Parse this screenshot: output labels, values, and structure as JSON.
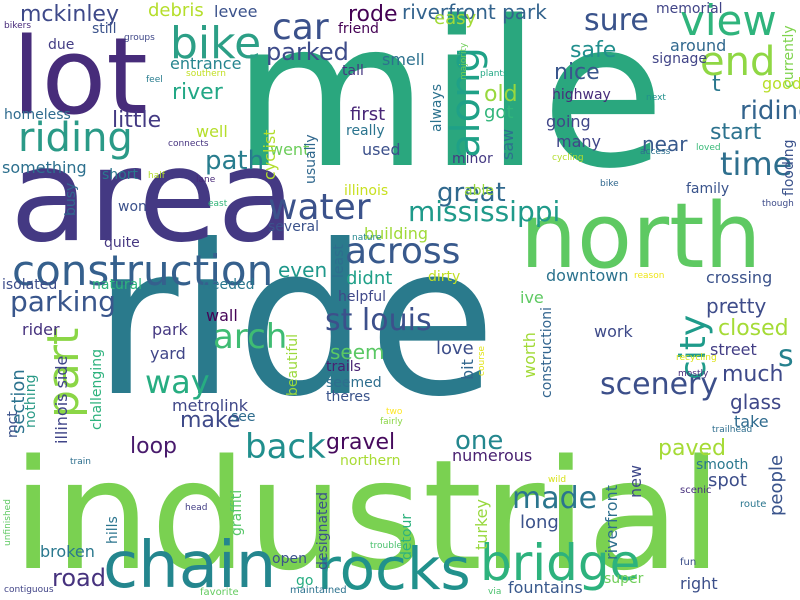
{
  "words": [
    {
      "text": "ride",
      "color": "#2a7a8c"
    },
    {
      "text": "industrial",
      "color": "#7ad151"
    },
    {
      "text": "mile",
      "color": "#2aa77e"
    },
    {
      "text": "area",
      "color": "#443983"
    },
    {
      "text": "lot",
      "color": "#472c7a"
    },
    {
      "text": "north",
      "color": "#5ec962"
    },
    {
      "text": "chain",
      "color": "#24868e"
    },
    {
      "text": "rocks",
      "color": "#21918c"
    },
    {
      "text": "bridge",
      "color": "#2db27d"
    },
    {
      "text": "construction",
      "color": "#35608d"
    },
    {
      "text": "riding",
      "color": "#2a9a87"
    },
    {
      "text": "bike",
      "color": "#2c9f86"
    },
    {
      "text": "view",
      "color": "#2fb47c"
    },
    {
      "text": "along",
      "color": "#1fa187"
    },
    {
      "text": "end",
      "color": "#8fd744"
    },
    {
      "text": "sure",
      "color": "#3a538b"
    },
    {
      "text": "car",
      "color": "#3b518b"
    },
    {
      "text": "across",
      "color": "#38598c"
    },
    {
      "text": "water",
      "color": "#1f9a8a"
    },
    {
      "text": "mississippi",
      "color": "#30698e"
    },
    {
      "text": "great",
      "color": "#8bd646"
    },
    {
      "text": "part",
      "color": "#39568c"
    },
    {
      "text": "parking",
      "color": "#27ad81"
    },
    {
      "text": "way",
      "color": "#3fbc73"
    },
    {
      "text": "arch",
      "color": "#218f8d"
    },
    {
      "text": "back",
      "color": "#3c508b"
    },
    {
      "text": "st louis",
      "color": "#1e9b8a"
    },
    {
      "text": "city",
      "color": "#2e6f8e"
    },
    {
      "text": "time",
      "color": "#3c4f8a"
    },
    {
      "text": "scenery",
      "color": "#24878e"
    },
    {
      "text": "one",
      "color": "#2b758e"
    },
    {
      "text": "made",
      "color": "#46327e"
    },
    {
      "text": "road",
      "color": "#33638d"
    },
    {
      "text": "riding",
      "color": "#25ab82"
    },
    {
      "text": "s",
      "color": "#26818e"
    },
    {
      "text": "mckinley",
      "color": "#3e4989"
    },
    {
      "text": "debris",
      "color": "#b5de2b"
    },
    {
      "text": "levee",
      "color": "#3b528b"
    },
    {
      "text": "rode",
      "color": "#440154"
    },
    {
      "text": "riverfront park",
      "color": "#33638d"
    },
    {
      "text": "easy",
      "color": "#a2da37"
    },
    {
      "text": "memorial",
      "color": "#414487"
    },
    {
      "text": "parked",
      "color": "#3e4c8a"
    },
    {
      "text": "safe",
      "color": "#218f8d"
    },
    {
      "text": "around",
      "color": "#31688e"
    },
    {
      "text": "signage",
      "color": "#414487"
    },
    {
      "text": "entrance",
      "color": "#25848e"
    },
    {
      "text": "smell",
      "color": "#2d718e"
    },
    {
      "text": "nice",
      "color": "#39568c"
    },
    {
      "text": "river",
      "color": "#22a785"
    },
    {
      "text": "old",
      "color": "#98d83e"
    },
    {
      "text": "t",
      "color": "#2a788e"
    },
    {
      "text": "good",
      "color": "#b8de29"
    },
    {
      "text": "little",
      "color": "#443a83"
    },
    {
      "text": "first",
      "color": "#482677"
    },
    {
      "text": "got",
      "color": "#31b57b"
    },
    {
      "text": "highway",
      "color": "#472d7b"
    },
    {
      "text": "start",
      "color": "#2c728e"
    },
    {
      "text": "going",
      "color": "#404688"
    },
    {
      "text": "path",
      "color": "#287d8e"
    },
    {
      "text": "well",
      "color": "#b5de2b"
    },
    {
      "text": "really",
      "color": "#2b748e"
    },
    {
      "text": "used",
      "color": "#3c508b"
    },
    {
      "text": "many",
      "color": "#404588"
    },
    {
      "text": "near",
      "color": "#38598c"
    },
    {
      "text": "minor",
      "color": "#443983"
    },
    {
      "text": "something",
      "color": "#2d708e"
    },
    {
      "text": "short",
      "color": "#2a788e"
    },
    {
      "text": "went",
      "color": "#6ccd5a"
    },
    {
      "text": "cyclist",
      "color": "#b2dd2d"
    },
    {
      "text": "usually",
      "color": "#31688e"
    },
    {
      "text": "saw",
      "color": "#2d718e"
    },
    {
      "text": "illinois",
      "color": "#c8e020"
    },
    {
      "text": "able",
      "color": "#9bd93c"
    },
    {
      "text": "family",
      "color": "#3a548c"
    },
    {
      "text": "won",
      "color": "#3b518b"
    },
    {
      "text": "busy",
      "color": "#31688e"
    },
    {
      "text": "several",
      "color": "#3b528b"
    },
    {
      "text": "building",
      "color": "#a0da39"
    },
    {
      "text": "even",
      "color": "#1f988b"
    },
    {
      "text": "didnt",
      "color": "#1fa088"
    },
    {
      "text": "downtown",
      "color": "#2c738e"
    },
    {
      "text": "crossing",
      "color": "#3b528b"
    },
    {
      "text": "quite",
      "color": "#453781"
    },
    {
      "text": "isolated",
      "color": "#3d4d8a"
    },
    {
      "text": "natural",
      "color": "#2fb47c"
    },
    {
      "text": "needed",
      "color": "#2a778e"
    },
    {
      "text": "wall",
      "color": "#450457"
    },
    {
      "text": "helpful",
      "color": "#3f4889"
    },
    {
      "text": "pretty",
      "color": "#3e4c8a"
    },
    {
      "text": "closed",
      "color": "#a5db36"
    },
    {
      "text": "rider",
      "color": "#46327e"
    },
    {
      "text": "park",
      "color": "#453882"
    },
    {
      "text": "yard",
      "color": "#404688"
    },
    {
      "text": "seem",
      "color": "#5ac864"
    },
    {
      "text": "love",
      "color": "#3d4e8a"
    },
    {
      "text": "work",
      "color": "#3e4a89"
    },
    {
      "text": "street",
      "color": "#433e85"
    },
    {
      "text": "much",
      "color": "#3e4989"
    },
    {
      "text": "metrolink",
      "color": "#3f4788"
    },
    {
      "text": "trails",
      "color": "#482173"
    },
    {
      "text": "seemed",
      "color": "#2e6e8e"
    },
    {
      "text": "theres",
      "color": "#3a538b"
    },
    {
      "text": "glass",
      "color": "#3f4889"
    },
    {
      "text": "make",
      "color": "#3e4989"
    },
    {
      "text": "see",
      "color": "#2f6c8e"
    },
    {
      "text": "take",
      "color": "#2f6b8e"
    },
    {
      "text": "loop",
      "color": "#481a6c"
    },
    {
      "text": "gravel",
      "color": "#460a5d"
    },
    {
      "text": "paved",
      "color": "#a5db36"
    },
    {
      "text": "smooth",
      "color": "#2a788e"
    },
    {
      "text": "spot",
      "color": "#3d4e8a"
    },
    {
      "text": "numerous",
      "color": "#481f70"
    },
    {
      "text": "northern",
      "color": "#a8db34"
    },
    {
      "text": "long",
      "color": "#3b528b"
    },
    {
      "text": "fountains",
      "color": "#38588c"
    },
    {
      "text": "right",
      "color": "#3c4f8a"
    },
    {
      "text": "broken",
      "color": "#2a788e"
    },
    {
      "text": "open",
      "color": "#3b528b"
    },
    {
      "text": "go",
      "color": "#26ad81"
    },
    {
      "text": "super",
      "color": "#6ece58"
    },
    {
      "text": "maintained",
      "color": "#2c728e"
    },
    {
      "text": "favorite",
      "color": "#63cb5f"
    },
    {
      "text": "trouble",
      "color": "#4ac16d"
    },
    {
      "text": "via",
      "color": "#4ac16d"
    },
    {
      "text": "fun",
      "color": "#3c4f8a"
    },
    {
      "text": "scenic",
      "color": "#472f7d"
    },
    {
      "text": "route",
      "color": "#2a768e"
    },
    {
      "text": "head",
      "color": "#433e85"
    },
    {
      "text": "wild",
      "color": "#d8e219"
    },
    {
      "text": "train",
      "color": "#2e6f8e"
    },
    {
      "text": "two",
      "color": "#fde725"
    },
    {
      "text": "fairly",
      "color": "#8bd646"
    },
    {
      "text": "trailhead",
      "color": "#2e6e8e"
    },
    {
      "text": "mostly",
      "color": "#472c7a"
    },
    {
      "text": "recycling",
      "color": "#dde318"
    },
    {
      "text": "course",
      "color": "#e2e418"
    },
    {
      "text": "nature",
      "color": "#24878e"
    },
    {
      "text": "reason",
      "color": "#efe51c"
    },
    {
      "text": "though",
      "color": "#3e4c8a"
    },
    {
      "text": "east",
      "color": "#32b67a"
    },
    {
      "text": "lane",
      "color": "#482878"
    },
    {
      "text": "access",
      "color": "#2d708e"
    },
    {
      "text": "cycling",
      "color": "#b2dd2d"
    },
    {
      "text": "loved",
      "color": "#38b977"
    },
    {
      "text": "connects",
      "color": "#46337f"
    },
    {
      "text": "half",
      "color": "#b2dd2d"
    },
    {
      "text": "next",
      "color": "#21918c"
    },
    {
      "text": "plants",
      "color": "#22a884"
    },
    {
      "text": "southern",
      "color": "#c2df23"
    },
    {
      "text": "feel",
      "color": "#287c8e"
    },
    {
      "text": "bikers",
      "color": "#472a7a"
    },
    {
      "text": "due",
      "color": "#433d84"
    },
    {
      "text": "still",
      "color": "#3b528b"
    },
    {
      "text": "groups",
      "color": "#3f4788"
    },
    {
      "text": "homeless",
      "color": "#2f6b8e"
    },
    {
      "text": "friend",
      "color": "#440154"
    },
    {
      "text": "tall",
      "color": "#453781"
    },
    {
      "text": "always",
      "color": "#2c728e"
    },
    {
      "text": "majority",
      "color": "#6ece58"
    },
    {
      "text": "currently",
      "color": "#7fd34e"
    },
    {
      "text": "flooding",
      "color": "#3b528b"
    },
    {
      "text": "people",
      "color": "#3a548c"
    },
    {
      "text": "new",
      "color": "#3f4889"
    },
    {
      "text": "riverfront",
      "color": "#2e6f8e"
    },
    {
      "text": "turkey",
      "color": "#98d83e"
    },
    {
      "text": "designated",
      "color": "#3b528b"
    },
    {
      "text": "detour",
      "color": "#2db27d"
    },
    {
      "text": "graffiti",
      "color": "#56c667"
    },
    {
      "text": "hills",
      "color": "#2b748e"
    },
    {
      "text": "illinois side",
      "color": "#404588"
    },
    {
      "text": "section",
      "color": "#2c738e"
    },
    {
      "text": "nothing",
      "color": "#2a9a87"
    },
    {
      "text": "challenging",
      "color": "#2db27d"
    },
    {
      "text": "beautiful",
      "color": "#9bd93c"
    },
    {
      "text": "least",
      "color": "#2e6e8e"
    },
    {
      "text": "worth",
      "color": "#a2da37"
    },
    {
      "text": "bit",
      "color": "#31668e"
    },
    {
      "text": "constructioni",
      "color": "#32648e"
    },
    {
      "text": "ive",
      "color": "#5ec962"
    },
    {
      "text": "dirty",
      "color": "#c0df25"
    },
    {
      "text": "mct",
      "color": "#3b528b"
    },
    {
      "text": "unfinished",
      "color": "#5ec962"
    },
    {
      "text": "contiguous",
      "color": "#414487"
    },
    {
      "text": "bike",
      "color": "#31688e"
    }
  ]
}
